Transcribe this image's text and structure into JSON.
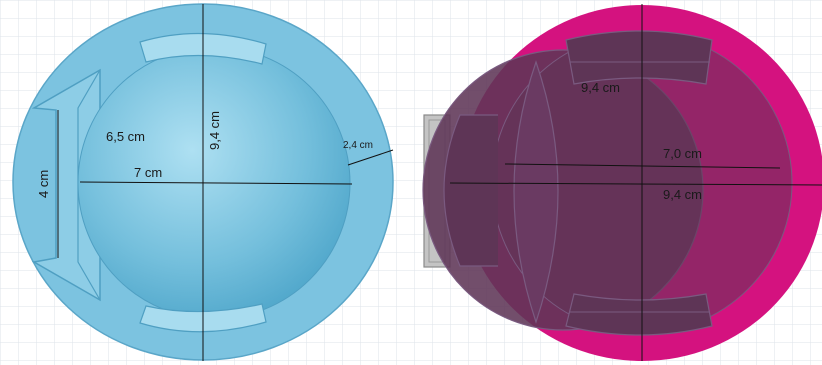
{
  "colors": {
    "background": "#ffffff",
    "grid": "#dde3ea",
    "left_body": "#7cc3e0",
    "left_edge": "#5aa6c8",
    "left_sphere_light": "#aee0f2",
    "left_sphere_dark": "#4aa3c8",
    "right_body": "#d4127f",
    "right_overlay": "#5e3556",
    "right_overlay_edge": "#7a5a80",
    "stand_gray": "#b9b9b9",
    "dimension_line": "#111111"
  },
  "left_model": {
    "label_height": "9,4 cm",
    "label_diagonal": "6,5 cm",
    "label_radius": "7 cm",
    "label_rim": "2,4 cm",
    "label_front": "4 cm"
  },
  "right_model": {
    "label_top": "9,4 cm",
    "label_inner": "7,0 cm",
    "label_outer": "9,4 cm"
  }
}
